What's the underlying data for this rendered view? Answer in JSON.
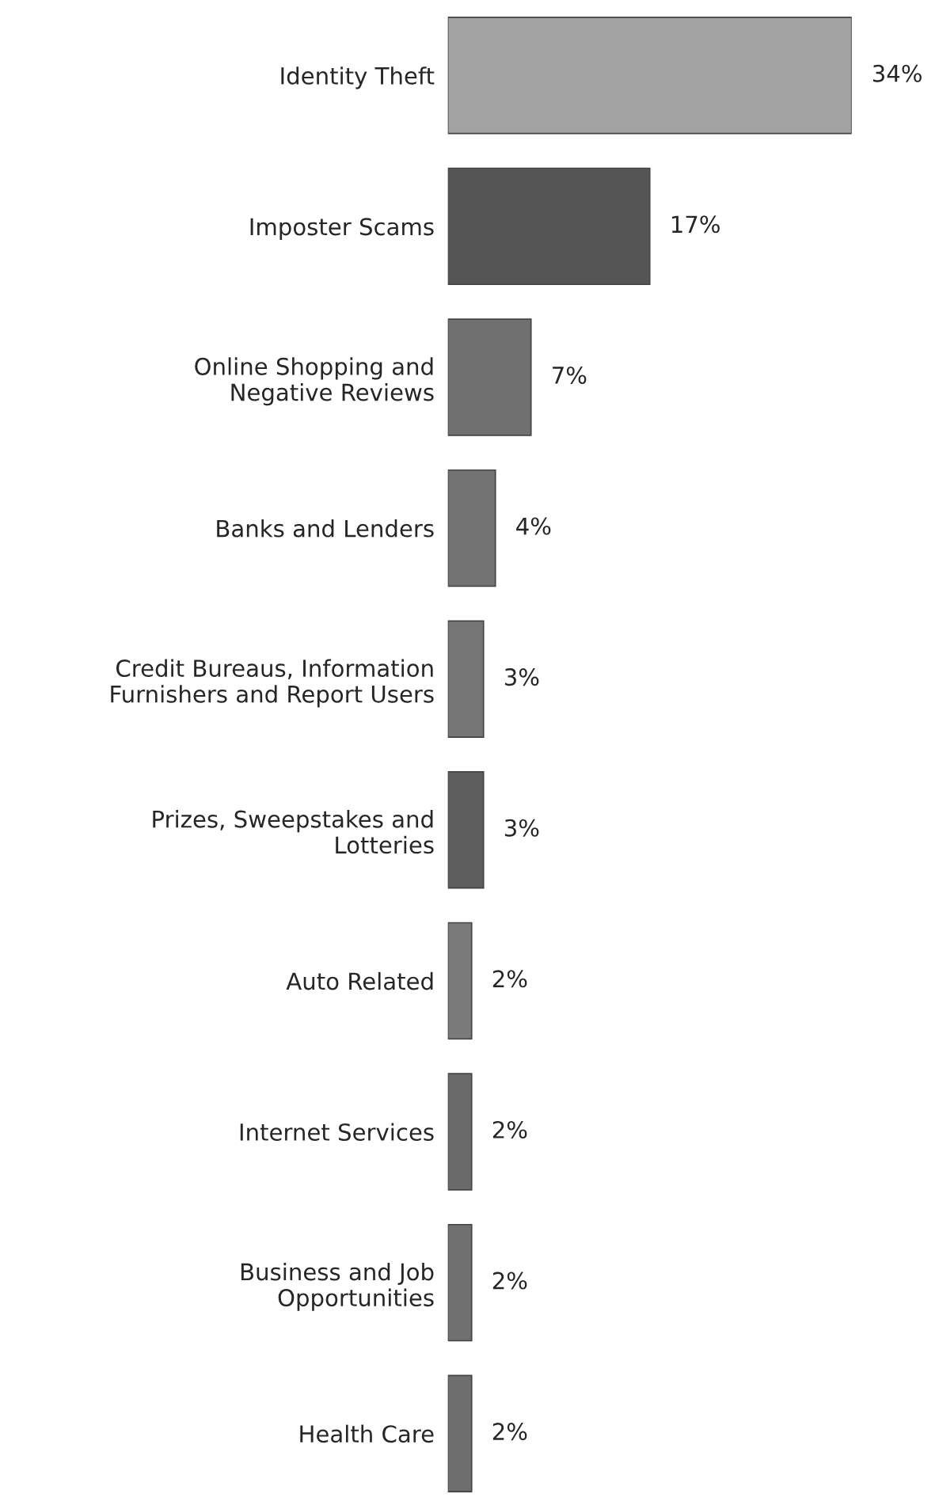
{
  "chart_data": {
    "type": "bar",
    "orientation": "horizontal",
    "value_labels": [
      "34%",
      "17%",
      "7%",
      "4%",
      "3%",
      "3%",
      "2%",
      "2%",
      "2%",
      "2%"
    ],
    "categories": [
      "Identity Theft",
      "Imposter Scams",
      "Online Shopping and\nNegative Reviews",
      "Banks and Lenders",
      "Credit Bureaus, Information\nFurnishers and Report Users",
      "Prizes, Sweepstakes and\nLotteries",
      "Auto Related",
      "Internet Services",
      "Business and Job\nOpportunities",
      "Health Care"
    ],
    "values": [
      34,
      17,
      7,
      4,
      3,
      3,
      2,
      2,
      2,
      2
    ],
    "colors": [
      "#a3a3a3",
      "#555555",
      "#707070",
      "#727272",
      "#767676",
      "#5e5e5e",
      "#7a7a7a",
      "#6a6a6a",
      "#707070",
      "#6e6e6e"
    ]
  }
}
